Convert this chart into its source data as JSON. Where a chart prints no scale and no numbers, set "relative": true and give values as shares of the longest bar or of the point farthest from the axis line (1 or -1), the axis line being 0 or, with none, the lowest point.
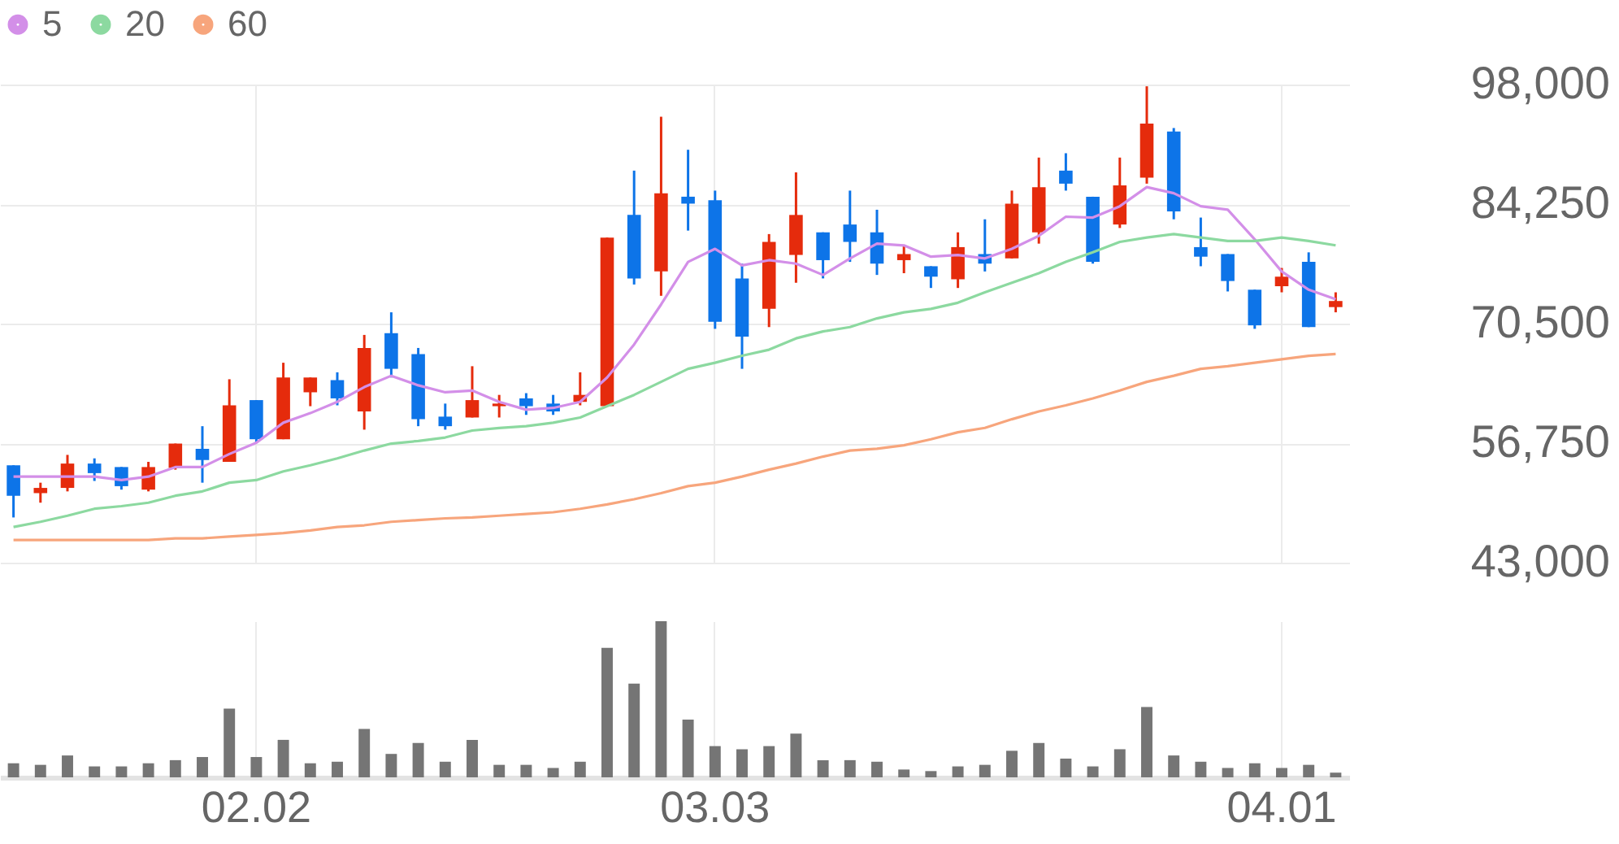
{
  "chart_data": [
    {
      "type": "candlestick",
      "categories": [
        null,
        null,
        null,
        null,
        null,
        null,
        null,
        null,
        null,
        "02.02",
        null,
        null,
        null,
        null,
        null,
        null,
        null,
        null,
        null,
        null,
        null,
        null,
        null,
        null,
        null,
        null,
        "03.03",
        null,
        null,
        null,
        null,
        null,
        null,
        null,
        null,
        null,
        null,
        null,
        null,
        null,
        null,
        null,
        null,
        null,
        null,
        null,
        null,
        "04.01",
        null,
        null
      ],
      "ohlc": [
        [
          54200,
          54200,
          48200,
          50700
        ],
        [
          51000,
          52200,
          49900,
          51600
        ],
        [
          51600,
          55400,
          51200,
          54400
        ],
        [
          54400,
          55000,
          52400,
          53300
        ],
        [
          54000,
          54000,
          51400,
          51800
        ],
        [
          51400,
          54600,
          51200,
          54000
        ],
        [
          53900,
          56700,
          53700,
          56700
        ],
        [
          56100,
          58700,
          52200,
          54800
        ],
        [
          54600,
          64100,
          54600,
          61100
        ],
        [
          61700,
          61700,
          56800,
          57200
        ],
        [
          57200,
          66000,
          57200,
          64300
        ],
        [
          62600,
          64300,
          61000,
          64300
        ],
        [
          64000,
          64900,
          61100,
          61900
        ],
        [
          60400,
          69200,
          58300,
          67700
        ],
        [
          69400,
          71800,
          64300,
          65300
        ],
        [
          67000,
          67700,
          58700,
          59500
        ],
        [
          59800,
          61300,
          58300,
          58700
        ],
        [
          59700,
          65600,
          59700,
          61700
        ],
        [
          61000,
          62300,
          59700,
          61300
        ],
        [
          61900,
          62500,
          60000,
          61000
        ],
        [
          61300,
          62300,
          60000,
          60400
        ],
        [
          61500,
          64900,
          61100,
          62300
        ],
        [
          61000,
          80400,
          61000,
          80400
        ],
        [
          83000,
          88100,
          75000,
          75700
        ],
        [
          76500,
          94300,
          73700,
          85500
        ],
        [
          85100,
          90500,
          81200,
          84300
        ],
        [
          84700,
          85800,
          69900,
          70700
        ],
        [
          75700,
          77400,
          65300,
          69000
        ],
        [
          72200,
          80800,
          70100,
          79900
        ],
        [
          78400,
          87900,
          75200,
          83000
        ],
        [
          81000,
          81000,
          75700,
          77800
        ],
        [
          81900,
          85800,
          77600,
          79900
        ],
        [
          81000,
          83600,
          76100,
          77400
        ],
        [
          77800,
          79500,
          76300,
          78500
        ],
        [
          77100,
          77100,
          74600,
          75900
        ],
        [
          75600,
          81000,
          74600,
          79300
        ],
        [
          78500,
          82500,
          76500,
          77400
        ],
        [
          78000,
          85800,
          78000,
          84300
        ],
        [
          81000,
          89600,
          79700,
          86200
        ],
        [
          88100,
          90100,
          85800,
          86600
        ],
        [
          85100,
          85100,
          77400,
          77600
        ],
        [
          81900,
          89600,
          81500,
          86400
        ],
        [
          87300,
          97800,
          86600,
          93500
        ],
        [
          92600,
          93000,
          82500,
          83400
        ],
        [
          79300,
          82700,
          77100,
          78200
        ],
        [
          78500,
          78500,
          74200,
          75400
        ],
        [
          74400,
          74400,
          69900,
          70300
        ],
        [
          74800,
          76900,
          74100,
          75900
        ],
        [
          77600,
          78700,
          70100,
          70100
        ],
        [
          72400,
          74100,
          71800,
          73100
        ]
      ],
      "colors": [
        "#0d74e8",
        "#e52b0c",
        "#e52b0c",
        "#0d74e8",
        "#0d74e8",
        "#e52b0c",
        "#e52b0c",
        "#0d74e8",
        "#e52b0c",
        "#0d74e8",
        "#e52b0c",
        "#e52b0c",
        "#0d74e8",
        "#e52b0c",
        "#0d74e8",
        "#0d74e8",
        "#0d74e8",
        "#e52b0c",
        "#e52b0c",
        "#0d74e8",
        "#0d74e8",
        "#e52b0c",
        "#e52b0c",
        "#0d74e8",
        "#e52b0c",
        "#0d74e8",
        "#0d74e8",
        "#0d74e8",
        "#e52b0c",
        "#e52b0c",
        "#0d74e8",
        "#0d74e8",
        "#0d74e8",
        "#e52b0c",
        "#0d74e8",
        "#e52b0c",
        "#0d74e8",
        "#e52b0c",
        "#e52b0c",
        "#0d74e8",
        "#0d74e8",
        "#e52b0c",
        "#e52b0c",
        "#0d74e8",
        "#0d74e8",
        "#0d74e8",
        "#0d74e8",
        "#e52b0c",
        "#0d74e8",
        "#e52b0c"
      ],
      "series": [
        {
          "name": "5",
          "type": "line",
          "color": "#d38fe8",
          "values": [
            52900,
            52900,
            52900,
            52900,
            52500,
            52900,
            54000,
            54000,
            55500,
            56800,
            59100,
            60200,
            61500,
            63200,
            64500,
            63400,
            62600,
            62800,
            61500,
            60600,
            60800,
            61500,
            64300,
            68100,
            72700,
            77600,
            79100,
            77200,
            77800,
            77400,
            76100,
            78000,
            79700,
            79500,
            78200,
            78400,
            78000,
            79100,
            80600,
            82800,
            82700,
            84000,
            86200,
            85500,
            84000,
            83600,
            80200,
            76500,
            74400,
            73300
          ]
        },
        {
          "name": "20",
          "type": "line",
          "color": "#8cd9a0",
          "values": [
            47100,
            47700,
            48400,
            49200,
            49500,
            49900,
            50700,
            51200,
            52200,
            52500,
            53500,
            54200,
            55000,
            55900,
            56700,
            57000,
            57400,
            58200,
            58500,
            58700,
            59100,
            59700,
            61000,
            62300,
            63800,
            65300,
            66000,
            66800,
            67500,
            68800,
            69600,
            70100,
            71100,
            71800,
            72200,
            72900,
            74100,
            75200,
            76300,
            77600,
            78700,
            79900,
            80400,
            80800,
            80400,
            80000,
            80000,
            80400,
            80000,
            79500
          ]
        },
        {
          "name": "60",
          "type": "line",
          "color": "#f7a57c",
          "values": [
            45600,
            45600,
            45600,
            45600,
            45600,
            45600,
            45800,
            45800,
            46000,
            46200,
            46400,
            46700,
            47100,
            47300,
            47700,
            47900,
            48100,
            48200,
            48400,
            48600,
            48800,
            49200,
            49700,
            50300,
            51000,
            51800,
            52200,
            52900,
            53700,
            54400,
            55200,
            55900,
            56100,
            56500,
            57200,
            58000,
            58500,
            59500,
            60400,
            61100,
            61900,
            62800,
            63800,
            64500,
            65300,
            65600,
            66000,
            66400,
            66800,
            67000
          ]
        }
      ],
      "ylim": [
        43000,
        98000
      ],
      "yticks": [
        {
          "value": 43000,
          "label": "43,000"
        },
        {
          "value": 56750,
          "label": "56,750"
        },
        {
          "value": 70500,
          "label": "70,500"
        },
        {
          "value": 84250,
          "label": "84,250"
        },
        {
          "value": 98000,
          "label": "98,000"
        }
      ],
      "grid": true,
      "legend": "top left",
      "tick_labels": "y"
    },
    {
      "type": "bar",
      "relative": true,
      "color": "#757575",
      "categories": [
        null,
        null,
        null,
        null,
        null,
        null,
        null,
        null,
        null,
        "02.02",
        null,
        null,
        null,
        null,
        null,
        null,
        null,
        null,
        null,
        null,
        null,
        null,
        null,
        null,
        null,
        null,
        "03.03",
        null,
        null,
        null,
        null,
        null,
        null,
        null,
        null,
        null,
        null,
        null,
        null,
        null,
        null,
        null,
        null,
        null,
        null,
        null,
        null,
        "04.01",
        null,
        null
      ],
      "values": [
        0.09,
        0.08,
        0.14,
        0.07,
        0.07,
        0.09,
        0.11,
        0.13,
        0.44,
        0.13,
        0.24,
        0.09,
        0.1,
        0.31,
        0.15,
        0.22,
        0.1,
        0.24,
        0.08,
        0.08,
        0.06,
        0.1,
        0.83,
        0.6,
        1,
        0.37,
        0.2,
        0.18,
        0.2,
        0.28,
        0.11,
        0.11,
        0.1,
        0.05,
        0.04,
        0.07,
        0.08,
        0.17,
        0.22,
        0.12,
        0.07,
        0.18,
        0.45,
        0.14,
        0.1,
        0.06,
        0.09,
        0.06,
        0.08,
        0.03
      ],
      "grid": "x",
      "tick_labels": "x"
    }
  ]
}
